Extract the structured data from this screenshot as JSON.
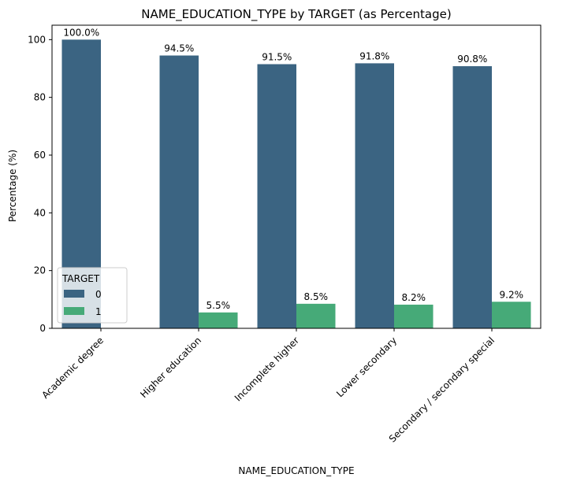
{
  "chart_data": {
    "type": "bar",
    "title": "NAME_EDUCATION_TYPE by TARGET (as Percentage)",
    "xlabel": "NAME_EDUCATION_TYPE",
    "ylabel": "Percentage (%)",
    "categories": [
      "Academic degree",
      "Higher education",
      "Incomplete higher",
      "Lower secondary",
      "Secondary / secondary special"
    ],
    "series": [
      {
        "name": "0",
        "color": "#3b6482",
        "values": [
          100.0,
          94.5,
          91.5,
          91.8,
          90.8
        ],
        "labels": [
          "100.0%",
          "94.5%",
          "91.5%",
          "91.8%",
          "90.8%"
        ]
      },
      {
        "name": "1",
        "color": "#46aa78",
        "values": [
          0.0,
          5.5,
          8.5,
          8.2,
          9.2
        ],
        "labels": [
          "",
          "5.5%",
          "8.5%",
          "8.2%",
          "9.2%"
        ]
      }
    ],
    "ylim": [
      0,
      105
    ],
    "yticks": [
      0,
      20,
      40,
      60,
      80,
      100
    ],
    "grid": false,
    "legend": {
      "title": "TARGET",
      "placement": "lower-left"
    }
  }
}
